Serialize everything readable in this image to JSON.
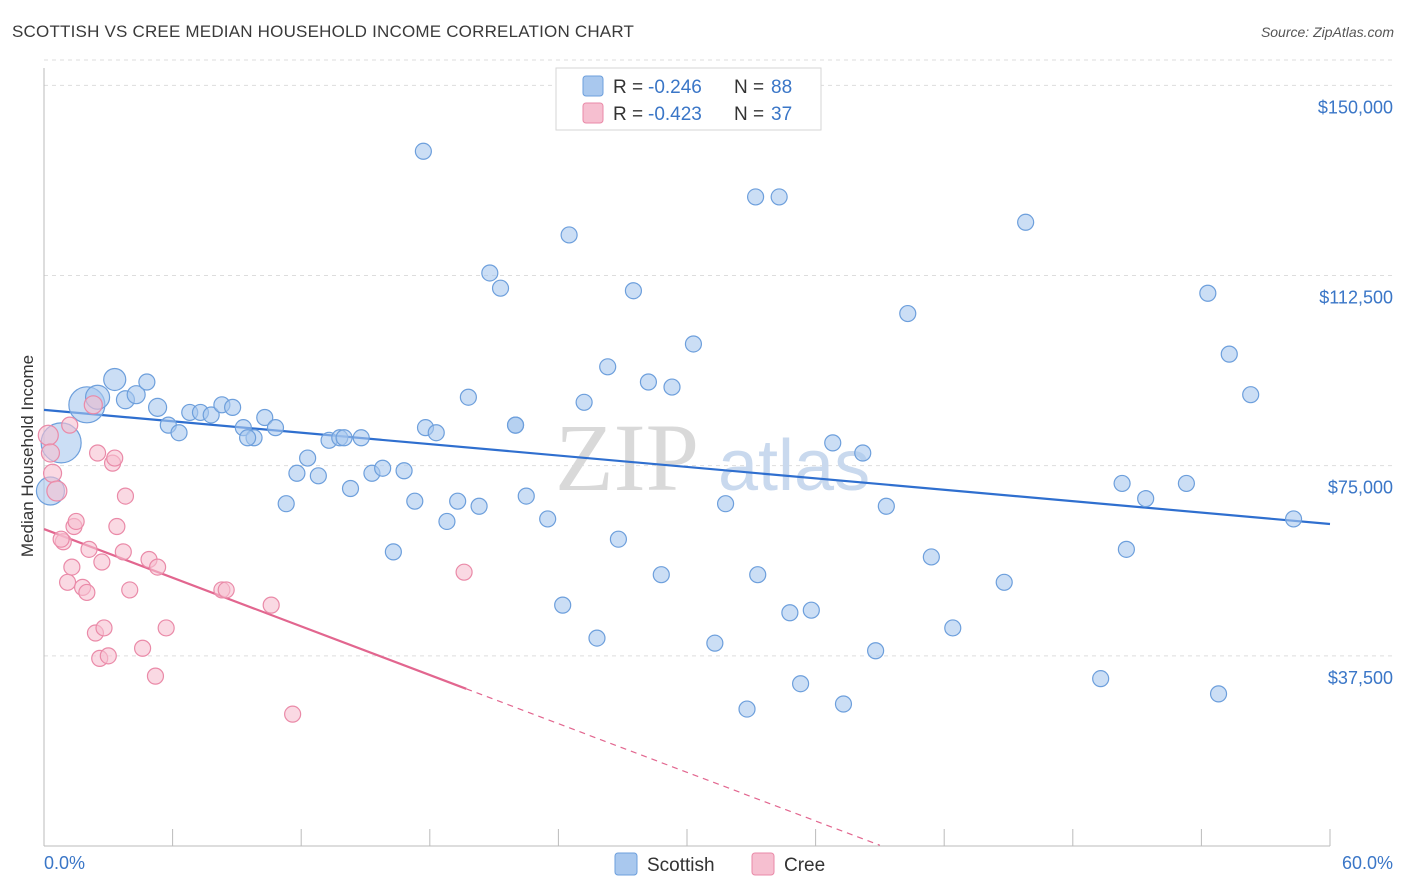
{
  "title": "SCOTTISH VS CREE MEDIAN HOUSEHOLD INCOME CORRELATION CHART",
  "source": "Source: ZipAtlas.com",
  "watermark": {
    "zip": "ZIP",
    "atlas": "atlas"
  },
  "colors": {
    "scottish_fill": "#a9c8ee",
    "scottish_stroke": "#6d9fdc",
    "scottish_line": "#2f6fcf",
    "cree_fill": "#f6bfd0",
    "cree_stroke": "#ea8aa8",
    "cree_line": "#e2668f",
    "tick_text": "#3a76c7",
    "grid": "#dddddd"
  },
  "legend_top": {
    "rows": [
      {
        "r_label": "R = ",
        "r_value": "-0.246",
        "n_label": "N = ",
        "n_value": "88"
      },
      {
        "r_label": "R = ",
        "r_value": "-0.423",
        "n_label": "N = ",
        "n_value": "37"
      }
    ]
  },
  "legend_bottom": [
    "Scottish",
    "Cree"
  ],
  "chart_data": {
    "type": "scatter",
    "title": "SCOTTISH VS CREE MEDIAN HOUSEHOLD INCOME CORRELATION CHART",
    "xlabel": "",
    "ylabel": "Median Household Income",
    "xlim": [
      0,
      60
    ],
    "ylim": [
      0,
      155000
    ],
    "x_tick_labels": [
      "0.0%",
      "60.0%"
    ],
    "y_ticks": [
      37500,
      75000,
      112500,
      150000
    ],
    "y_tick_labels": [
      "$37,500",
      "$75,000",
      "$112,500",
      "$150,000"
    ],
    "grid": true,
    "legend_placement": "bottom-center",
    "series": [
      {
        "name": "Scottish",
        "r": -0.246,
        "n": 88,
        "trend": {
          "x0": 0,
          "y0": 86000,
          "x1": 60,
          "y1": 63500
        },
        "points": [
          [
            0.3,
            70000,
            14
          ],
          [
            0.8,
            79500,
            20
          ],
          [
            2.0,
            87000,
            18
          ],
          [
            2.5,
            88500,
            12
          ],
          [
            3.3,
            92000,
            11
          ],
          [
            3.8,
            88000,
            9
          ],
          [
            4.3,
            89000,
            9
          ],
          [
            4.8,
            91500,
            8
          ],
          [
            5.3,
            86500,
            9
          ],
          [
            5.8,
            83000,
            8
          ],
          [
            6.3,
            81500,
            8
          ],
          [
            6.8,
            85500,
            8
          ],
          [
            7.3,
            85500,
            8
          ],
          [
            7.8,
            85000,
            8
          ],
          [
            8.3,
            87000,
            8
          ],
          [
            8.8,
            86500,
            8
          ],
          [
            9.3,
            82500,
            8
          ],
          [
            9.8,
            80500,
            8
          ],
          [
            10.3,
            84500,
            8
          ],
          [
            10.8,
            82500,
            8
          ],
          [
            11.3,
            67500,
            8
          ],
          [
            11.8,
            73500,
            8
          ],
          [
            12.3,
            76500,
            8
          ],
          [
            12.8,
            73000,
            8
          ],
          [
            13.3,
            80000,
            8
          ],
          [
            13.8,
            80500,
            8
          ],
          [
            14.3,
            70500,
            8
          ],
          [
            14.8,
            80500,
            8
          ],
          [
            15.3,
            73500,
            8
          ],
          [
            15.8,
            74500,
            8
          ],
          [
            16.3,
            58000,
            8
          ],
          [
            16.8,
            74000,
            8
          ],
          [
            17.3,
            68000,
            8
          ],
          [
            17.8,
            82500,
            8
          ],
          [
            18.3,
            81500,
            8
          ],
          [
            18.8,
            64000,
            8
          ],
          [
            19.3,
            68000,
            8
          ],
          [
            19.8,
            88500,
            8
          ],
          [
            20.3,
            67000,
            8
          ],
          [
            20.8,
            113000,
            8
          ],
          [
            21.3,
            110000,
            8
          ],
          [
            22.0,
            83000,
            8
          ],
          [
            22.5,
            69000,
            8
          ],
          [
            23.5,
            64500,
            8
          ],
          [
            24.2,
            47500,
            8
          ],
          [
            24.5,
            120500,
            8
          ],
          [
            25.2,
            87500,
            8
          ],
          [
            25.8,
            41000,
            8
          ],
          [
            26.3,
            94500,
            8
          ],
          [
            26.8,
            60500,
            8
          ],
          [
            27.5,
            109500,
            8
          ],
          [
            28.2,
            91500,
            8
          ],
          [
            28.8,
            53500,
            8
          ],
          [
            29.3,
            90500,
            8
          ],
          [
            30.3,
            99000,
            8
          ],
          [
            31.3,
            40000,
            8
          ],
          [
            31.8,
            67500,
            8
          ],
          [
            32.8,
            27000,
            8
          ],
          [
            33.2,
            128000,
            8
          ],
          [
            33.3,
            53500,
            8
          ],
          [
            34.3,
            128000,
            8
          ],
          [
            34.8,
            46000,
            8
          ],
          [
            35.3,
            32000,
            8
          ],
          [
            35.8,
            46500,
            8
          ],
          [
            36.8,
            79500,
            8
          ],
          [
            37.3,
            28000,
            8
          ],
          [
            38.2,
            77500,
            8
          ],
          [
            38.8,
            38500,
            8
          ],
          [
            39.3,
            67000,
            8
          ],
          [
            40.3,
            105000,
            8
          ],
          [
            41.4,
            57000,
            8
          ],
          [
            42.4,
            43000,
            8
          ],
          [
            44.8,
            52000,
            8
          ],
          [
            45.8,
            123000,
            8
          ],
          [
            49.3,
            33000,
            8
          ],
          [
            50.3,
            71500,
            8
          ],
          [
            50.5,
            58500,
            8
          ],
          [
            51.4,
            68500,
            8
          ],
          [
            53.3,
            71500,
            8
          ],
          [
            54.3,
            109000,
            8
          ],
          [
            54.8,
            30000,
            8
          ],
          [
            55.3,
            97000,
            8
          ],
          [
            56.3,
            89000,
            8
          ],
          [
            58.3,
            64500,
            8
          ],
          [
            17.7,
            137000,
            8
          ],
          [
            22.0,
            83000,
            8
          ],
          [
            14.0,
            80500,
            8
          ],
          [
            9.5,
            80500,
            8
          ]
        ]
      },
      {
        "name": "Cree",
        "r": -0.423,
        "n": 37,
        "trend": {
          "x0": 0,
          "y0": 62500,
          "x1": 19.7,
          "y1": 31000,
          "x_dash_end": 39.0
        },
        "points": [
          [
            0.2,
            81000,
            10
          ],
          [
            0.3,
            77500,
            9
          ],
          [
            0.4,
            73500,
            9
          ],
          [
            0.6,
            70000,
            10
          ],
          [
            0.9,
            60000,
            8
          ],
          [
            1.1,
            52000,
            8
          ],
          [
            1.3,
            55000,
            8
          ],
          [
            1.4,
            63000,
            8
          ],
          [
            1.5,
            64000,
            8
          ],
          [
            1.8,
            51000,
            8
          ],
          [
            2.0,
            50000,
            8
          ],
          [
            2.1,
            58500,
            8
          ],
          [
            2.4,
            42000,
            8
          ],
          [
            2.6,
            37000,
            8
          ],
          [
            2.7,
            56000,
            8
          ],
          [
            2.8,
            43000,
            8
          ],
          [
            3.0,
            37500,
            8
          ],
          [
            3.2,
            75500,
            8
          ],
          [
            3.3,
            76500,
            8
          ],
          [
            3.4,
            63000,
            8
          ],
          [
            3.7,
            58000,
            8
          ],
          [
            3.8,
            69000,
            8
          ],
          [
            4.0,
            50500,
            8
          ],
          [
            4.6,
            39000,
            8
          ],
          [
            4.9,
            56500,
            8
          ],
          [
            5.2,
            33500,
            8
          ],
          [
            5.3,
            55000,
            8
          ],
          [
            5.7,
            43000,
            8
          ],
          [
            8.3,
            50500,
            8
          ],
          [
            8.5,
            50500,
            8
          ],
          [
            10.6,
            47500,
            8
          ],
          [
            11.6,
            26000,
            8
          ],
          [
            19.6,
            54000,
            8
          ],
          [
            2.3,
            87000,
            9
          ],
          [
            1.2,
            83000,
            8
          ],
          [
            0.8,
            60500,
            8
          ],
          [
            2.5,
            77500,
            8
          ]
        ]
      }
    ]
  }
}
